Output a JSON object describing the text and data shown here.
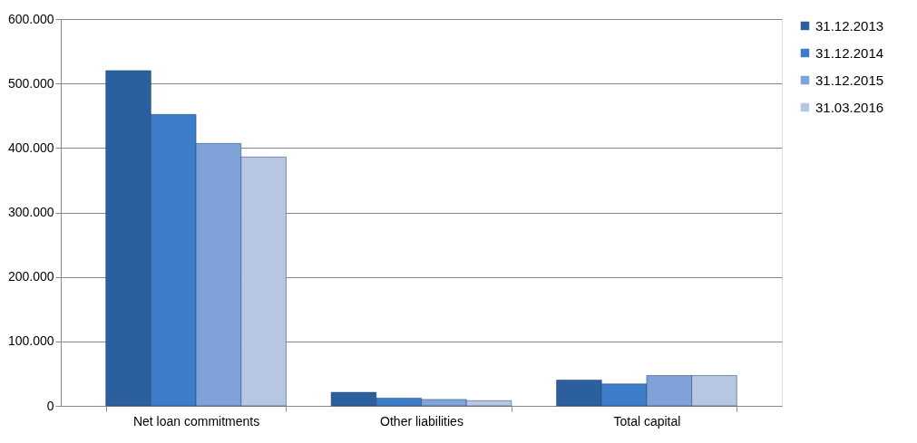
{
  "chart_data": {
    "type": "bar",
    "categories": [
      "Net loan commitments",
      "Other liabilities",
      "Total capital"
    ],
    "series": [
      {
        "name": "31.12.2013",
        "color": "#2b5f9e",
        "values": [
          520000,
          21000,
          40000
        ]
      },
      {
        "name": "31.12.2014",
        "color": "#3d7cc9",
        "values": [
          452000,
          12000,
          34000
        ]
      },
      {
        "name": "31.12.2015",
        "color": "#7fa2d8",
        "values": [
          407000,
          10000,
          47000
        ]
      },
      {
        "name": "31.03.2016",
        "color": "#b7c6e2",
        "values": [
          386000,
          8000,
          47000
        ]
      }
    ],
    "ylim": [
      0,
      600000
    ],
    "yticks": [
      0,
      {
        "value": 100000,
        "label": "100.000"
      },
      {
        "value": 200000,
        "label": "200.000"
      },
      {
        "value": 300000,
        "label": "300.000"
      },
      {
        "value": 400000,
        "label": "400.000"
      },
      {
        "value": 500000,
        "label": "500.000"
      },
      {
        "value": 600000,
        "label": "600.000"
      }
    ],
    "grid": "y",
    "legend": "right"
  }
}
